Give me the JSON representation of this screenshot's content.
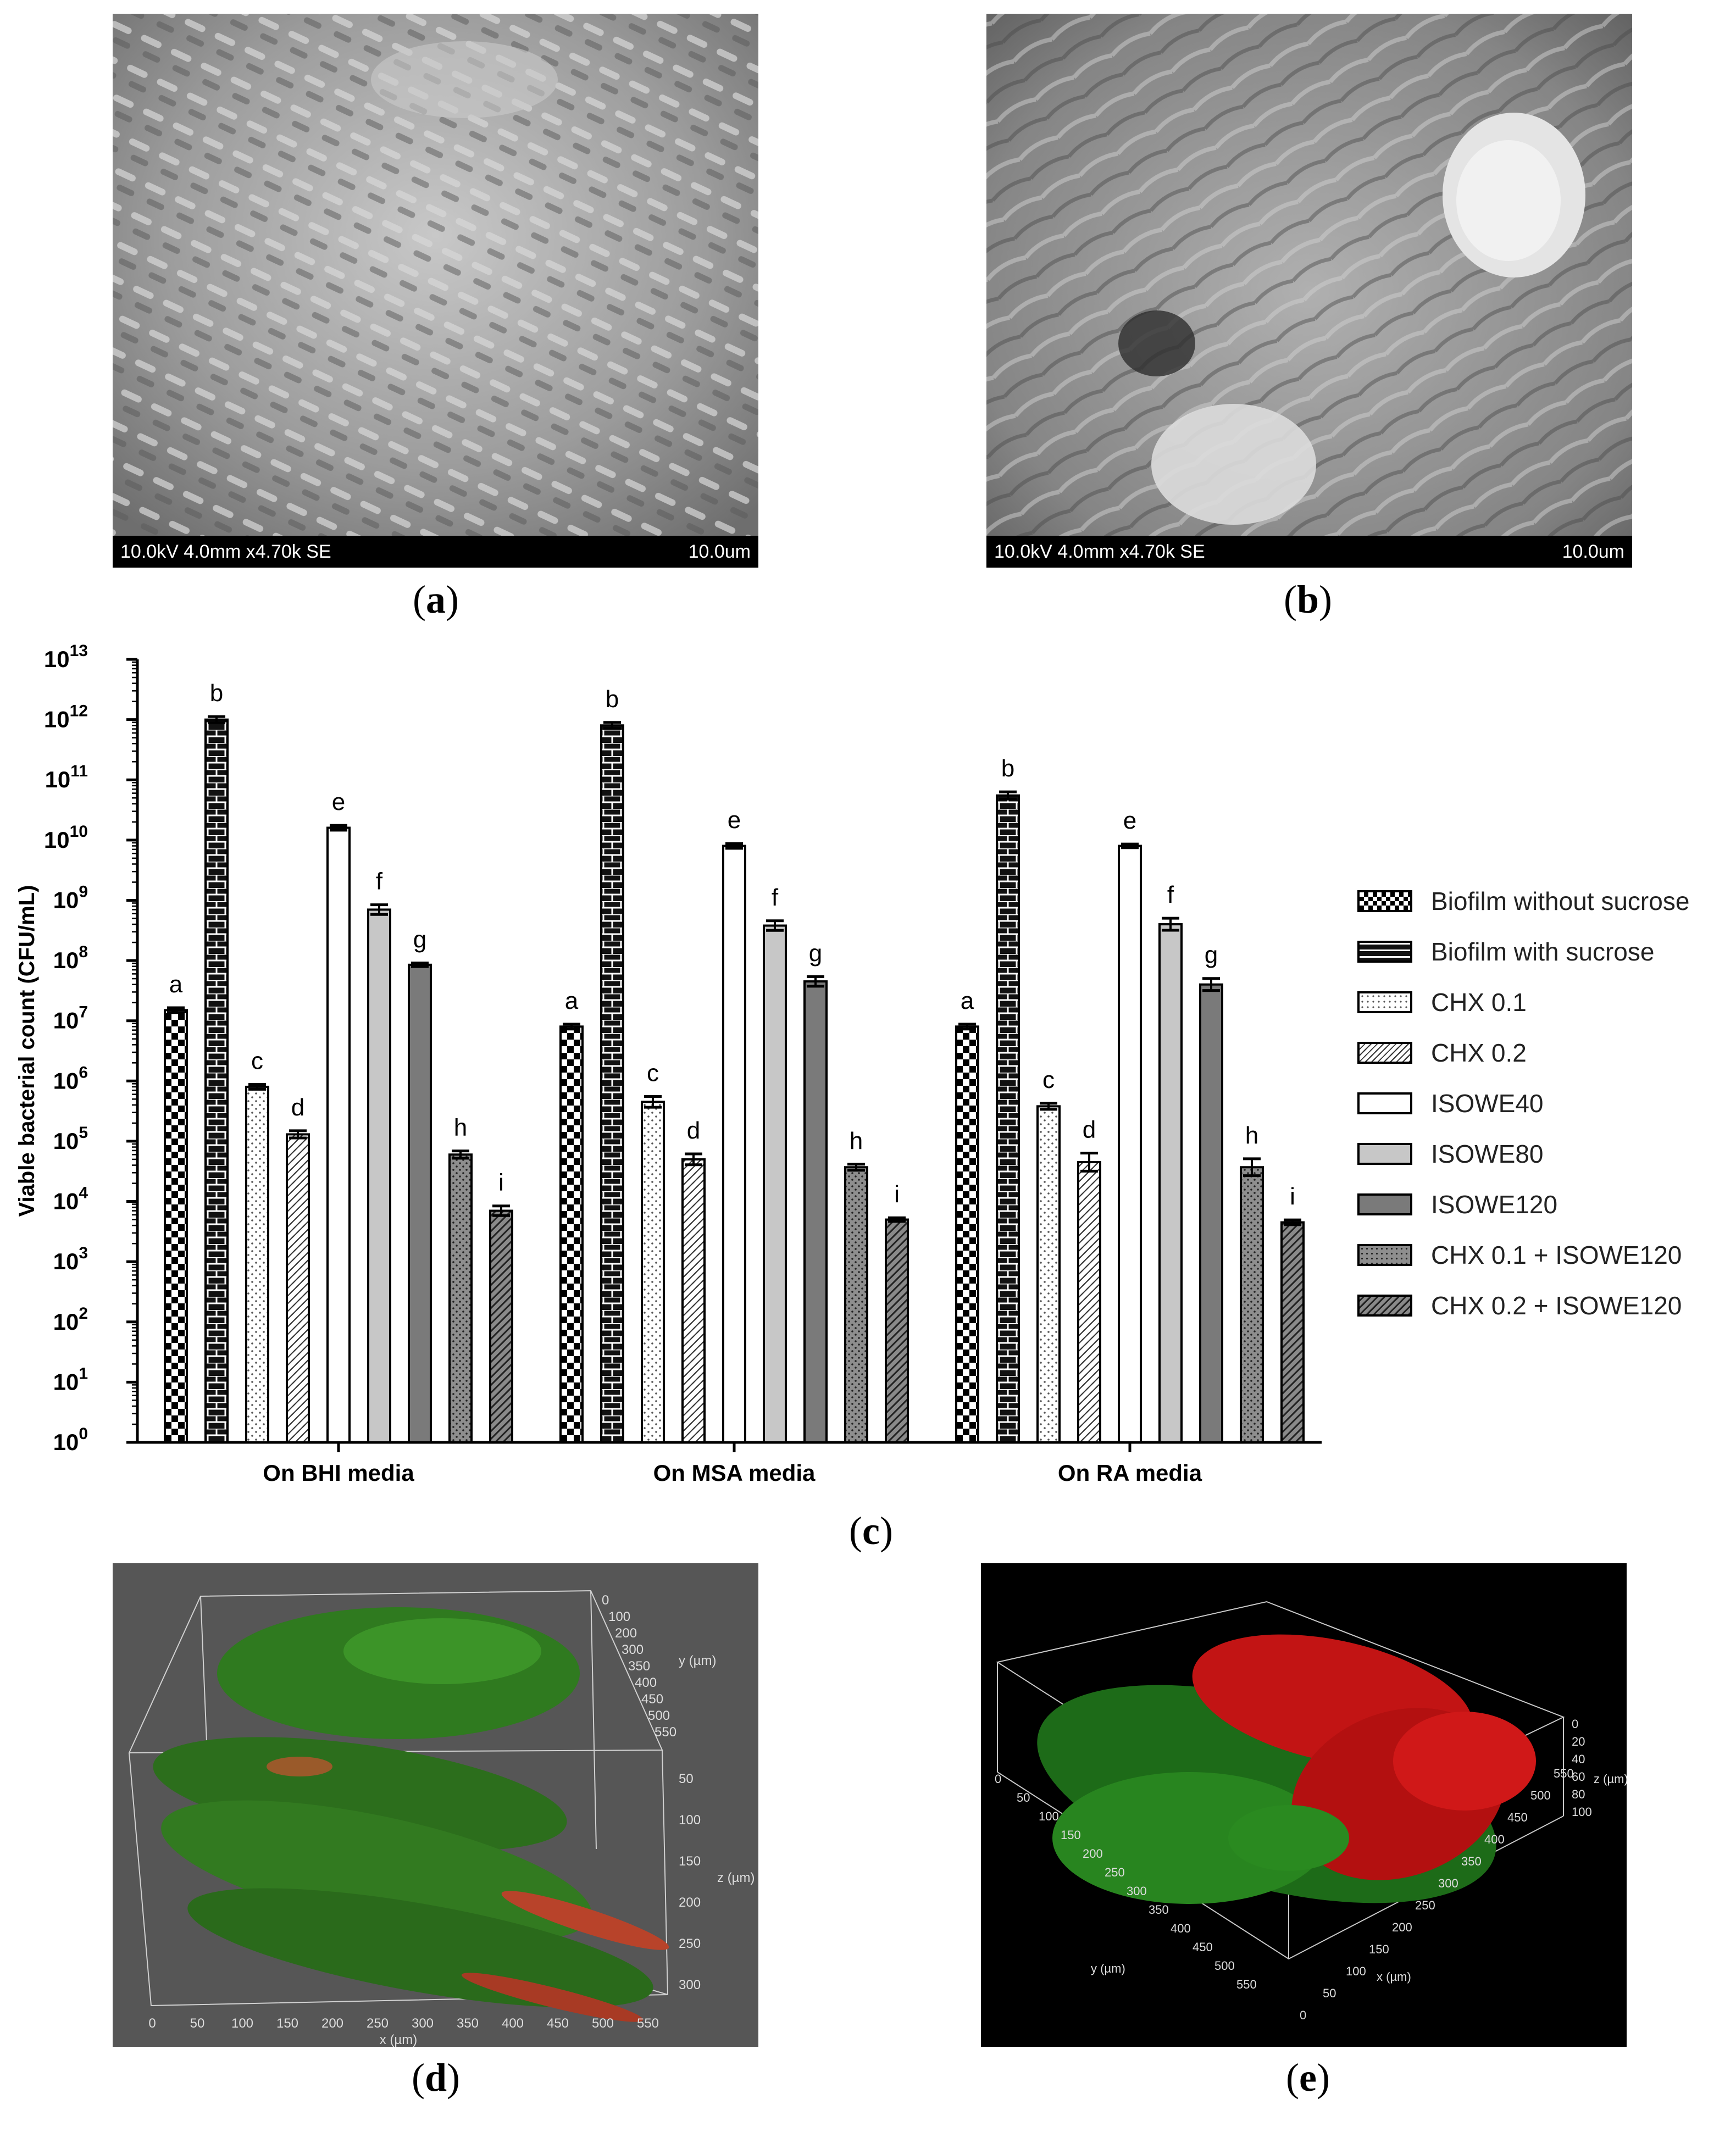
{
  "panels": {
    "a": {
      "label": "a",
      "sem_info": "10.0kV 4.0mm x4.70k SE",
      "scale": "10.0um"
    },
    "b": {
      "label": "b",
      "sem_info": "10.0kV 4.0mm x4.70k SE",
      "scale": "10.0um"
    },
    "c": {
      "label": "c"
    },
    "d": {
      "label": "d",
      "y_axis_label": "y (µm)",
      "z_axis_label": "z (µm)",
      "x_axis_label": "x (µm)",
      "x_ticks": [
        "0",
        "50",
        "100",
        "150",
        "200",
        "250",
        "300",
        "350",
        "400",
        "450",
        "500",
        "550"
      ],
      "y_ticks": [
        "0",
        "100",
        "200",
        "300",
        "350",
        "400",
        "450",
        "500",
        "550"
      ],
      "z_ticks": [
        "50",
        "100",
        "150",
        "200",
        "250",
        "300"
      ]
    },
    "e": {
      "label": "e",
      "z_axis_label": "z (µm)",
      "y_axis_label": "y (µm)",
      "x_axis_label": "x (µm)",
      "z_ticks": [
        "0",
        "20",
        "40",
        "60",
        "80",
        "100"
      ],
      "y_ticks": [
        "0",
        "50",
        "100",
        "150",
        "200",
        "250",
        "300",
        "350",
        "400",
        "450",
        "500",
        "550"
      ],
      "x_ticks": [
        "0",
        "50",
        "100",
        "150",
        "200",
        "250",
        "300",
        "350",
        "400",
        "450",
        "500",
        "550"
      ]
    }
  },
  "chart_data": {
    "type": "bar",
    "ylabel": "Viable bacterial count (CFU/mL)",
    "xlabel": "",
    "y_scale": "log",
    "ylim": [
      1,
      10000000000000
    ],
    "y_tick_labels": [
      "10^0",
      "10^1",
      "10^2",
      "10^3",
      "10^4",
      "10^5",
      "10^6",
      "10^7",
      "10^8",
      "10^9",
      "10^10",
      "10^11",
      "10^12",
      "10^13"
    ],
    "categories": [
      "On BHI media",
      "On MSA media",
      "On RA media"
    ],
    "legend_position": "right",
    "series": [
      {
        "name": "Biofilm without sucrose",
        "pattern": "checker",
        "values": [
          15000000,
          8000000,
          8000000
        ],
        "errors_log": [
          0.04,
          0.04,
          0.04
        ],
        "letters": [
          "a",
          "a",
          "a"
        ]
      },
      {
        "name": "Biofilm with sucrose",
        "pattern": "brick",
        "values": [
          1000000000000,
          800000000000,
          55000000000
        ],
        "errors_log": [
          0.05,
          0.05,
          0.06
        ],
        "letters": [
          "b",
          "b",
          "b"
        ]
      },
      {
        "name": "CHX 0.1",
        "pattern": "dots",
        "values": [
          800000,
          450000,
          380000
        ],
        "errors_log": [
          0.04,
          0.09,
          0.05
        ],
        "letters": [
          "c",
          "c",
          "c"
        ]
      },
      {
        "name": "CHX 0.2",
        "pattern": "hatch",
        "values": [
          130000,
          50000,
          45000
        ],
        "errors_log": [
          0.06,
          0.09,
          0.15
        ],
        "letters": [
          "d",
          "d",
          "d"
        ]
      },
      {
        "name": "ISOWE40",
        "pattern": "white",
        "values": [
          16000000000,
          8000000000,
          8000000000
        ],
        "errors_log": [
          0.04,
          0.04,
          0.03
        ],
        "letters": [
          "e",
          "e",
          "e"
        ]
      },
      {
        "name": "ISOWE80",
        "pattern": "lightgray",
        "values": [
          700000000,
          380000000,
          400000000
        ],
        "errors_log": [
          0.08,
          0.08,
          0.1
        ],
        "letters": [
          "f",
          "f",
          "f"
        ]
      },
      {
        "name": "ISOWE120",
        "pattern": "darkgray",
        "values": [
          85000000,
          45000000,
          40000000
        ],
        "errors_log": [
          0.03,
          0.08,
          0.1
        ],
        "letters": [
          "g",
          "g",
          "g"
        ]
      },
      {
        "name": "CHX 0.1 + ISOWE120",
        "pattern": "darkdots",
        "values": [
          60000,
          37000,
          37000
        ],
        "errors_log": [
          0.06,
          0.05,
          0.14
        ],
        "letters": [
          "h",
          "h",
          "h"
        ]
      },
      {
        "name": "CHX 0.2 + ISOWE120",
        "pattern": "darkhatch",
        "values": [
          7000,
          5000,
          4500
        ],
        "errors_log": [
          0.08,
          0.03,
          0.04
        ],
        "letters": [
          "i",
          "i",
          "i"
        ]
      }
    ]
  }
}
